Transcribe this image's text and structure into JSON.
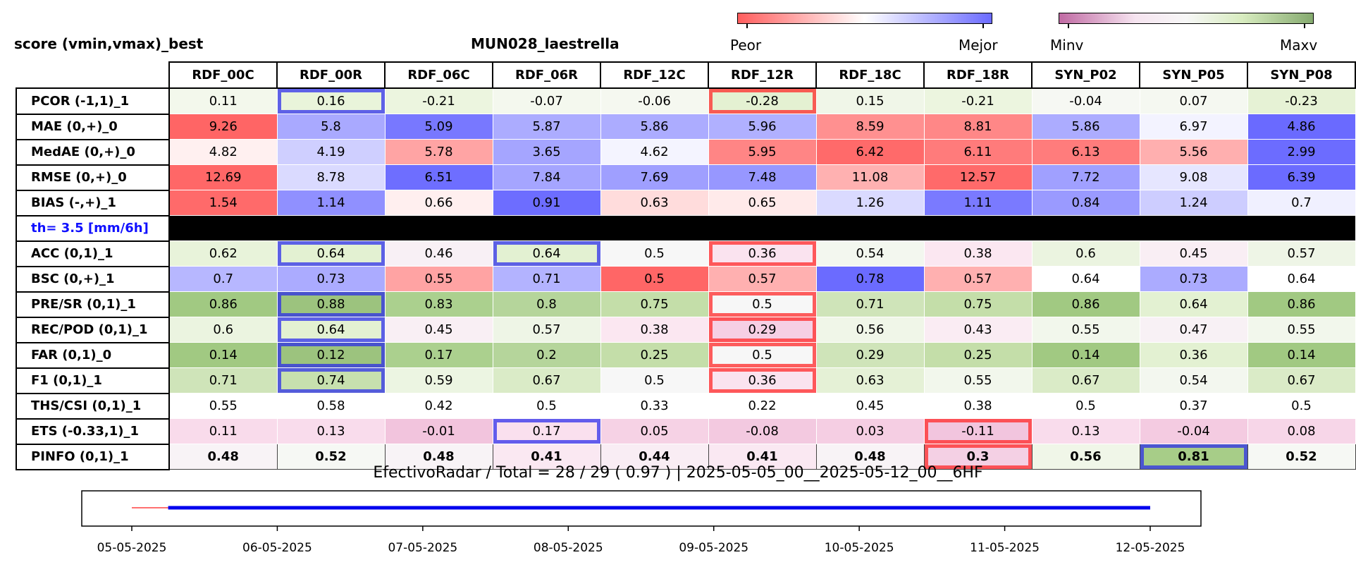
{
  "title_left": "score (vmin,vmax)_best",
  "title_station": "MUN028_laestrella",
  "colorbar_error": {
    "low_label": "Peor",
    "high_label": "Mejor",
    "low_color": "#ff5e5e",
    "high_color": "#6b6bff"
  },
  "colorbar_skill": {
    "low_label": "Minv",
    "high_label": "Maxv",
    "low_color": "#c06aa3",
    "high_color": "#85aa6f"
  },
  "footer": "EfectivoRadar / Total  =  28 / 29 ( 0.97 ) | 2025-05-05_00__2025-05-12_00__6HF",
  "chart_data": [
    {
      "type": "heatmap",
      "columns": [
        "RDF_00C",
        "RDF_00R",
        "RDF_06C",
        "RDF_06R",
        "RDF_12C",
        "RDF_12R",
        "RDF_18C",
        "RDF_18R",
        "SYN_P02",
        "SYN_P05",
        "SYN_P08"
      ],
      "separator": {
        "after_row": 4,
        "label": "th= 3.5 [mm/6h]"
      },
      "rows": [
        {
          "label": "PCOR (-1,1)_1",
          "values": [
            "0.11",
            "0.16",
            "-0.21",
            "-0.07",
            "-0.06",
            "-0.28",
            "0.15",
            "-0.21",
            "-0.04",
            "0.07",
            "-0.23"
          ],
          "colors": [
            "#f3f8ec",
            "#e9f4da",
            "#ecf5df",
            "#f4f8ee",
            "#f5f8f0",
            "#e4f1d2",
            "#f0f6e8",
            "#ecf5df",
            "#f6f8f3",
            "#f5f8f1",
            "#e6f2d5"
          ],
          "best": 1,
          "worst": 5
        },
        {
          "label": "MAE (0,+)_0",
          "values": [
            "9.26",
            "5.8",
            "5.09",
            "5.87",
            "5.86",
            "5.96",
            "8.59",
            "8.81",
            "5.86",
            "6.97",
            "4.86"
          ],
          "colors": [
            "#ff6565",
            "#a9a9ff",
            "#7878ff",
            "#acacff",
            "#acacff",
            "#b0b0ff",
            "#ff9090",
            "#ff8787",
            "#acacff",
            "#f3f3ff",
            "#6a6aff"
          ]
        },
        {
          "label": "MedAE (0,+)_0",
          "values": [
            "4.82",
            "4.19",
            "5.78",
            "3.65",
            "4.62",
            "5.95",
            "6.42",
            "6.11",
            "6.13",
            "5.56",
            "2.99"
          ],
          "colors": [
            "#fff0f0",
            "#cfcfff",
            "#ffa4a4",
            "#a5a5ff",
            "#f4f4ff",
            "#ff8585",
            "#ff6a6a",
            "#ff7b7b",
            "#ff7c7c",
            "#ffafaf",
            "#6c6cff"
          ]
        },
        {
          "label": "RMSE (0,+)_0",
          "values": [
            "12.69",
            "8.78",
            "6.51",
            "7.84",
            "7.69",
            "7.48",
            "11.08",
            "12.57",
            "7.72",
            "9.08",
            "6.39"
          ],
          "colors": [
            "#ff6767",
            "#dadaff",
            "#6e6eff",
            "#a5a5ff",
            "#9f9fff",
            "#9797ff",
            "#ffb1b1",
            "#ff6a6a",
            "#a0a0ff",
            "#e6e6ff",
            "#6b6bff"
          ]
        },
        {
          "label": "BIAS (-,+)_1",
          "values": [
            "1.54",
            "1.14",
            "0.66",
            "0.91",
            "0.63",
            "0.65",
            "1.26",
            "1.11",
            "0.84",
            "1.24",
            "0.7"
          ],
          "colors": [
            "#ff6a6a",
            "#9090ff",
            "#ffefef",
            "#6d6dff",
            "#ffdcdc",
            "#ffeaea",
            "#dadaff",
            "#7a7aff",
            "#9a9aff",
            "#cdcdff",
            "#f0f0ff"
          ]
        },
        {
          "label": "ACC (0,1)_1",
          "values": [
            "0.62",
            "0.64",
            "0.46",
            "0.64",
            "0.5",
            "0.36",
            "0.54",
            "0.38",
            "0.6",
            "0.45",
            "0.57"
          ],
          "colors": [
            "#e8f3da",
            "#e3f1d2",
            "#f8f0f5",
            "#e3f1d2",
            "#f7f7f7",
            "#fae3ef",
            "#f3f7ef",
            "#fbe7f1",
            "#ebf4e0",
            "#f9eef4",
            "#eef5e6"
          ],
          "best": [
            1,
            3
          ],
          "worst": 5
        },
        {
          "label": "BSC (0,+)_1",
          "values": [
            "0.7",
            "0.73",
            "0.55",
            "0.71",
            "0.5",
            "0.57",
            "0.78",
            "0.57",
            "0.64",
            "0.73",
            "0.64"
          ],
          "colors": [
            "#b7b7ff",
            "#ababff",
            "#ffa3a3",
            "#b3b3ff",
            "#ff6666",
            "#ffb0b0",
            "#6b6bff",
            "#ffb0b0",
            "#ffffff",
            "#ababff",
            "#ffffff"
          ]
        },
        {
          "label": "PRE/SR (0,1)_1",
          "values": [
            "0.86",
            "0.88",
            "0.83",
            "0.8",
            "0.75",
            "0.5",
            "0.71",
            "0.75",
            "0.86",
            "0.64",
            "0.86"
          ],
          "colors": [
            "#a1c982",
            "#9cc37e",
            "#abd08e",
            "#b5d59b",
            "#c4dea9",
            "#f7f7f7",
            "#cfe4b9",
            "#c4dea9",
            "#a1c982",
            "#e3f1d2",
            "#a1c982"
          ],
          "best": 1,
          "worst": 5
        },
        {
          "label": "REC/POD (0,1)_1",
          "values": [
            "0.6",
            "0.64",
            "0.45",
            "0.57",
            "0.38",
            "0.29",
            "0.56",
            "0.43",
            "0.55",
            "0.47",
            "0.55"
          ],
          "colors": [
            "#ebf4e0",
            "#e3f1d2",
            "#f9eff4",
            "#eef5e6",
            "#fbe7f1",
            "#f6cfe4",
            "#f0f6e8",
            "#faecf3",
            "#f2f7ec",
            "#f8f1f5",
            "#f2f7ec"
          ],
          "best": 1,
          "worst": 5
        },
        {
          "label": "FAR (0,1)_0",
          "values": [
            "0.14",
            "0.12",
            "0.17",
            "0.2",
            "0.25",
            "0.5",
            "0.29",
            "0.25",
            "0.14",
            "0.36",
            "0.14"
          ],
          "colors": [
            "#a1c982",
            "#9cc37e",
            "#abd08e",
            "#b5d59b",
            "#c4dea9",
            "#f7f7f7",
            "#cfe4b9",
            "#c4dea9",
            "#a1c982",
            "#e3f1d2",
            "#a1c982"
          ],
          "best": 1,
          "worst": 5
        },
        {
          "label": "F1 (0,1)_1",
          "values": [
            "0.71",
            "0.74",
            "0.59",
            "0.67",
            "0.5",
            "0.36",
            "0.63",
            "0.55",
            "0.67",
            "0.54",
            "0.67"
          ],
          "colors": [
            "#cfe4b9",
            "#c7e0ae",
            "#ecf5e2",
            "#daebc7",
            "#f7f7f7",
            "#fae3ef",
            "#e5f1d6",
            "#f2f7ec",
            "#daebc7",
            "#f3f7ef",
            "#daebc7"
          ],
          "best": 1,
          "worst": 5
        },
        {
          "label": "THS/CSI (0,1)_1",
          "values": [
            "0.55",
            "0.58",
            "0.42",
            "0.5",
            "0.33",
            "0.22",
            "0.45",
            "0.38",
            "0.5",
            "0.37",
            "0.5"
          ],
          "colors": [
            "#ffffff",
            "#ffffff",
            "#ffffff",
            "#ffffff",
            "#ffffff",
            "#ffffff",
            "#ffffff",
            "#ffffff",
            "#ffffff",
            "#ffffff",
            "#ffffff"
          ]
        },
        {
          "label": "ETS (-0.33,1)_1",
          "values": [
            "0.11",
            "0.13",
            "-0.01",
            "0.17",
            "0.05",
            "-0.08",
            "0.03",
            "-0.11",
            "0.13",
            "-0.04",
            "0.08"
          ],
          "colors": [
            "#f9dbeb",
            "#f9dcec",
            "#f2c4dd",
            "#fae0ee",
            "#f6d2e5",
            "#f3c9e0",
            "#f5cee3",
            "#f2c5de",
            "#f9dcec",
            "#f4cbe1",
            "#f7d6e8"
          ],
          "best": 3,
          "worst": 7
        },
        {
          "label": "PINFO (0,1)_1",
          "values": [
            "0.48",
            "0.52",
            "0.48",
            "0.41",
            "0.44",
            "0.41",
            "0.48",
            "0.3",
            "0.56",
            "0.81",
            "0.52"
          ],
          "colors": [
            "#f8f3f6",
            "#f6f8f4",
            "#f8f3f6",
            "#fae8f2",
            "#f9edf4",
            "#fae8f2",
            "#f8f3f6",
            "#f4d0e4",
            "#f0f6e8",
            "#a7cd88",
            "#f6f8f4"
          ],
          "best": 9,
          "worst": 7,
          "bold": true
        }
      ]
    },
    {
      "type": "line",
      "x_ticks": [
        "05-05-2025",
        "06-05-2025",
        "07-05-2025",
        "08-05-2025",
        "09-05-2025",
        "10-05-2025",
        "11-05-2025",
        "12-05-2025"
      ],
      "xlim": [
        "2025-05-05",
        "2025-05-12"
      ],
      "series": [
        {
          "color": "#ff4040",
          "x": [
            "2025-05-05 00:00",
            "2025-05-05 06:00"
          ]
        },
        {
          "color": "#0000ee",
          "x": [
            "2025-05-05 06:00",
            "2025-05-12 00:00"
          ]
        }
      ]
    }
  ]
}
